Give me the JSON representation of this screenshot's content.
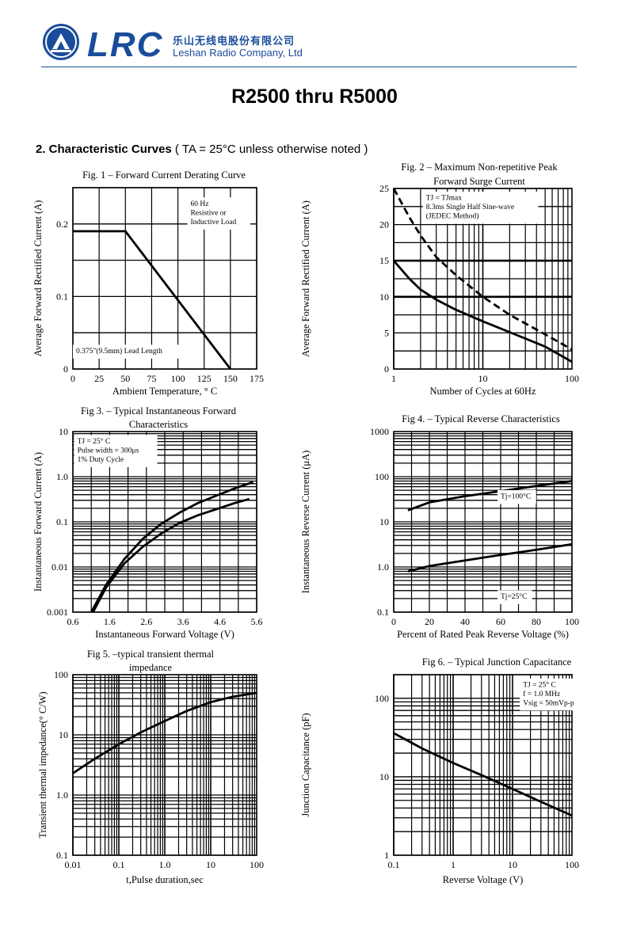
{
  "header": {
    "brand": "LRC",
    "company_cn": "乐山无线电股份有限公司",
    "company_en": "Leshan Radio Company, Ltd"
  },
  "title": "R2500 thru R5000",
  "section": {
    "label": "2. Characteristic Curves",
    "note": " ( TA = 25°C unless otherwise noted )"
  },
  "colors": {
    "brand": "#1a4c9c",
    "ink": "#000000"
  },
  "chart_data": [
    {
      "id": "fig1",
      "type": "line",
      "title": [
        "Fig. 1 –  Forward Current Derating Curve"
      ],
      "xlabel": "Ambient Temperature, °  C",
      "ylabel": "Average Forward Rectified Current (A)",
      "xscale": "linear",
      "yscale": "linear",
      "xlim": [
        0,
        175
      ],
      "ylim": [
        0,
        0.25
      ],
      "xticks": [
        0,
        25,
        50,
        75,
        100,
        125,
        150,
        175
      ],
      "xticklabels": [
        "0",
        "25",
        "50",
        "75",
        "100",
        "125",
        "150",
        "175"
      ],
      "yticks": [
        0,
        0.1,
        0.2
      ],
      "yticklabels": [
        "0",
        "0.1",
        "0.2"
      ],
      "grid": true,
      "annotations": [
        {
          "lines": [
            "60 Hz",
            "Resistive or",
            "Inductive Load"
          ],
          "x": 112,
          "y": 0.225
        },
        {
          "lines": [
            "0.375\"(9.5mm) Lead Length"
          ],
          "x": 3,
          "y": 0.022
        }
      ],
      "series": [
        {
          "style": "solid",
          "x": [
            0,
            50,
            150
          ],
          "y": [
            0.19,
            0.19,
            0
          ]
        }
      ]
    },
    {
      "id": "fig2",
      "type": "line",
      "title": [
        "Fig. 2 –  Maximum Non-repetitive Peak",
        "Forward Surge Current"
      ],
      "xlabel": "Number of Cycles at 60Hz",
      "ylabel": "Average Forward Rectified Current (A)",
      "xscale": "log",
      "yscale": "linear",
      "xlim": [
        1,
        100
      ],
      "ylim": [
        0,
        25
      ],
      "xticks": [
        1,
        10,
        100
      ],
      "xticklabels": [
        "1",
        "10",
        "100"
      ],
      "yticks": [
        0,
        5,
        10,
        15,
        20,
        25
      ],
      "yticklabels": [
        "0",
        "5",
        "10",
        "15",
        "20",
        "25"
      ],
      "grid": true,
      "boldlines": [
        10,
        15
      ],
      "annotations": [
        {
          "lines": [
            "TJ = TJmax",
            "8.3ms Single Half Sine-wave",
            "(JEDEC Method)"
          ],
          "x": 2.3,
          "y": 23.4
        }
      ],
      "series": [
        {
          "style": "dashed",
          "x": [
            1,
            1.5,
            2,
            3,
            5,
            10,
            20,
            50,
            100
          ],
          "y": [
            25,
            21,
            18.5,
            15.5,
            13,
            10,
            7.5,
            4.8,
            2.7
          ]
        },
        {
          "style": "solid",
          "x": [
            1,
            1.5,
            2,
            3,
            5,
            10,
            20,
            50,
            100
          ],
          "y": [
            15,
            12.5,
            11,
            9.6,
            8.2,
            6.6,
            5.1,
            3.1,
            1
          ]
        }
      ]
    },
    {
      "id": "fig3",
      "type": "line",
      "title": [
        "Fig 3. –  Typical Instantaneous Forward",
        "Characteristics"
      ],
      "xlabel": "Instantaneous Forward Voltage (V)",
      "ylabel": "Instantaneous Forward Current (A)",
      "xscale": "linear",
      "yscale": "log",
      "xlim": [
        0.6,
        5.6
      ],
      "ylim": [
        0.001,
        10
      ],
      "xticks": [
        0.6,
        1.6,
        2.6,
        3.6,
        4.6,
        5.6
      ],
      "xticklabels": [
        "0.6",
        "1.6",
        "2.6",
        "3.6",
        "4.6",
        "5.6"
      ],
      "yticks": [
        0.001,
        0.01,
        0.1,
        1,
        10
      ],
      "yticklabels": [
        "0.001",
        "0.01",
        "0.1",
        "1.0",
        "10"
      ],
      "grid": true,
      "annotations": [
        {
          "lines": [
            "TJ = 25°  C",
            "Pulse width = 300μs",
            "1% Duty Cycle"
          ],
          "x": 0.72,
          "y": 5.5
        }
      ],
      "series": [
        {
          "style": "solid",
          "x": [
            1.1,
            1.5,
            2,
            2.5,
            3,
            3.5,
            4,
            4.5,
            5,
            5.5
          ],
          "y": [
            0.001,
            0.004,
            0.015,
            0.042,
            0.09,
            0.16,
            0.26,
            0.38,
            0.55,
            0.76
          ]
        },
        {
          "style": "solid",
          "x": [
            1.15,
            1.5,
            2,
            2.5,
            3,
            3.5,
            4,
            4.5,
            5,
            5.4
          ],
          "y": [
            0.001,
            0.0035,
            0.012,
            0.028,
            0.055,
            0.095,
            0.14,
            0.19,
            0.26,
            0.32
          ]
        }
      ]
    },
    {
      "id": "fig4",
      "type": "line",
      "title": [
        "Fig 4. –  Typical Reverse Characteristics"
      ],
      "xlabel": "Percent of Rated Peak Reverse Voltage (%)",
      "ylabel": "Instantaneous Reverse Current (μA)",
      "xscale": "linear",
      "yscale": "log",
      "xlim": [
        0,
        100
      ],
      "ylim": [
        0.1,
        1000
      ],
      "xticks": [
        0,
        20,
        40,
        60,
        80,
        100
      ],
      "xticklabels": [
        "0",
        "20",
        "40",
        "60",
        "80",
        "100"
      ],
      "yticks": [
        0.1,
        1,
        10,
        100,
        1000
      ],
      "yticklabels": [
        "0.1",
        "1.0",
        "10",
        "100",
        "1000"
      ],
      "grid": true,
      "annotations": [
        {
          "lines": [
            "Tj=100°C"
          ],
          "x": 60,
          "y": 33
        },
        {
          "lines": [
            "Tj=25°C"
          ],
          "x": 60,
          "y": 0.2
        }
      ],
      "series": [
        {
          "style": "solid",
          "x": [
            8,
            20,
            40,
            60,
            80,
            100
          ],
          "y": [
            18,
            27,
            37,
            48,
            62,
            80
          ]
        },
        {
          "style": "solid",
          "x": [
            8,
            20,
            40,
            60,
            80,
            100
          ],
          "y": [
            0.8,
            1.05,
            1.4,
            1.85,
            2.4,
            3.2
          ]
        }
      ]
    },
    {
      "id": "fig5",
      "type": "line",
      "title": [
        "Fig 5.  –typical transient thermal",
        "impedance"
      ],
      "xlabel": "t,Pulse duration,sec",
      "ylabel": "Transient thermal impedance(°  C/W)",
      "xscale": "log",
      "yscale": "log",
      "xlim": [
        0.01,
        100
      ],
      "ylim": [
        0.1,
        100
      ],
      "xticks": [
        0.01,
        0.1,
        1,
        10,
        100
      ],
      "xticklabels": [
        "0.01",
        "0.1",
        "1.0",
        "10",
        "100"
      ],
      "yticks": [
        0.1,
        1,
        10,
        100
      ],
      "yticklabels": [
        "0.1",
        "1.0",
        "10",
        "100"
      ],
      "grid": true,
      "annotations": [],
      "series": [
        {
          "style": "solid",
          "x": [
            0.01,
            0.03,
            0.1,
            0.3,
            1,
            3,
            10,
            30,
            100
          ],
          "y": [
            2.3,
            4,
            7,
            11,
            17,
            25,
            35,
            43,
            50
          ]
        }
      ]
    },
    {
      "id": "fig6",
      "type": "line",
      "title": [
        "Fig 6.  –  Typical Junction Capacitance"
      ],
      "xlabel": "Reverse Voltage (V)",
      "ylabel": "Junction Capacitance (pF)",
      "xscale": "log",
      "yscale": "log",
      "xlim": [
        0.1,
        100
      ],
      "ylim": [
        1,
        200
      ],
      "xticks": [
        0.1,
        1,
        10,
        100
      ],
      "xticklabels": [
        "0.1",
        "1",
        "10",
        "100"
      ],
      "yticks": [
        1,
        10,
        100
      ],
      "yticklabels": [
        "1",
        "10",
        "100"
      ],
      "grid": true,
      "annotations": [
        {
          "lines": [
            "TJ = 25°  C",
            "f = 1.0 MHz",
            "Vsig = 50mVp-p"
          ],
          "x": 15,
          "y": 140
        }
      ],
      "series": [
        {
          "style": "solid",
          "x": [
            0.1,
            0.3,
            1,
            3,
            10,
            30,
            100
          ],
          "y": [
            36,
            23,
            15,
            10.5,
            7,
            4.8,
            3.2
          ]
        }
      ]
    }
  ]
}
